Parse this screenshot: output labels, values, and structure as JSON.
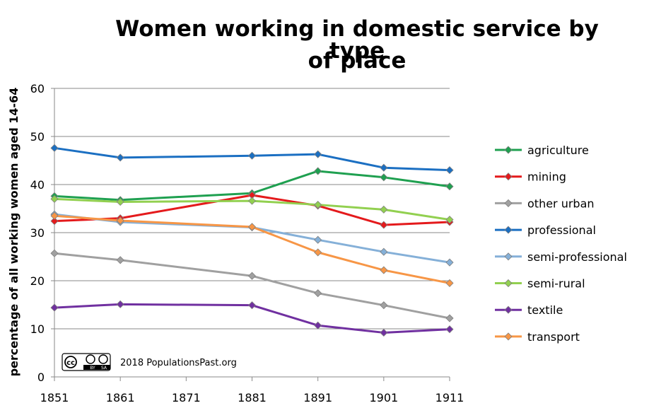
{
  "chart_data": {
    "type": "line",
    "title_line1": "Women working in domestic service by type",
    "title_line2": "of place",
    "xlabel": "",
    "ylabel": "percentage of all working women aged 14-64",
    "x": [
      1851,
      1861,
      1881,
      1891,
      1901,
      1911
    ],
    "x_ticks": [
      "1851",
      "1861",
      "1871",
      "1881",
      "1891",
      "1901",
      "1911"
    ],
    "y_ticks": [
      "0",
      "10",
      "20",
      "30",
      "40",
      "50",
      "60"
    ],
    "xlim": [
      1851,
      1911
    ],
    "ylim": [
      0,
      60
    ],
    "grid": "horizontal",
    "legend_position": "right",
    "series": [
      {
        "name": "agriculture",
        "color": "#1fa050",
        "values": [
          37.6,
          36.8,
          38.2,
          42.8,
          41.5,
          39.6
        ]
      },
      {
        "name": "mining",
        "color": "#e41a1c",
        "values": [
          32.4,
          33.0,
          37.8,
          35.6,
          31.6,
          32.2
        ]
      },
      {
        "name": "other urban",
        "color": "#a0a0a0",
        "values": [
          25.7,
          24.3,
          21.0,
          17.4,
          14.9,
          12.2
        ]
      },
      {
        "name": "professional",
        "color": "#1b6fc2",
        "values": [
          47.6,
          45.6,
          46.0,
          46.3,
          43.5,
          43.0
        ]
      },
      {
        "name": "semi-professional",
        "color": "#85b0d8",
        "values": [
          33.8,
          32.2,
          31.1,
          28.5,
          26.0,
          23.8
        ]
      },
      {
        "name": "semi-rural",
        "color": "#92d050",
        "values": [
          37.0,
          36.4,
          36.6,
          35.8,
          34.8,
          32.7
        ]
      },
      {
        "name": "textile",
        "color": "#7030a0",
        "values": [
          14.4,
          15.1,
          14.9,
          10.7,
          9.2,
          9.9
        ]
      },
      {
        "name": "transport",
        "color": "#f79646",
        "values": [
          33.5,
          32.5,
          31.2,
          25.9,
          22.2,
          19.5
        ]
      }
    ]
  },
  "credit": {
    "text": "2018 PopulationsPast.org",
    "license_logo": "cc BY SA"
  }
}
